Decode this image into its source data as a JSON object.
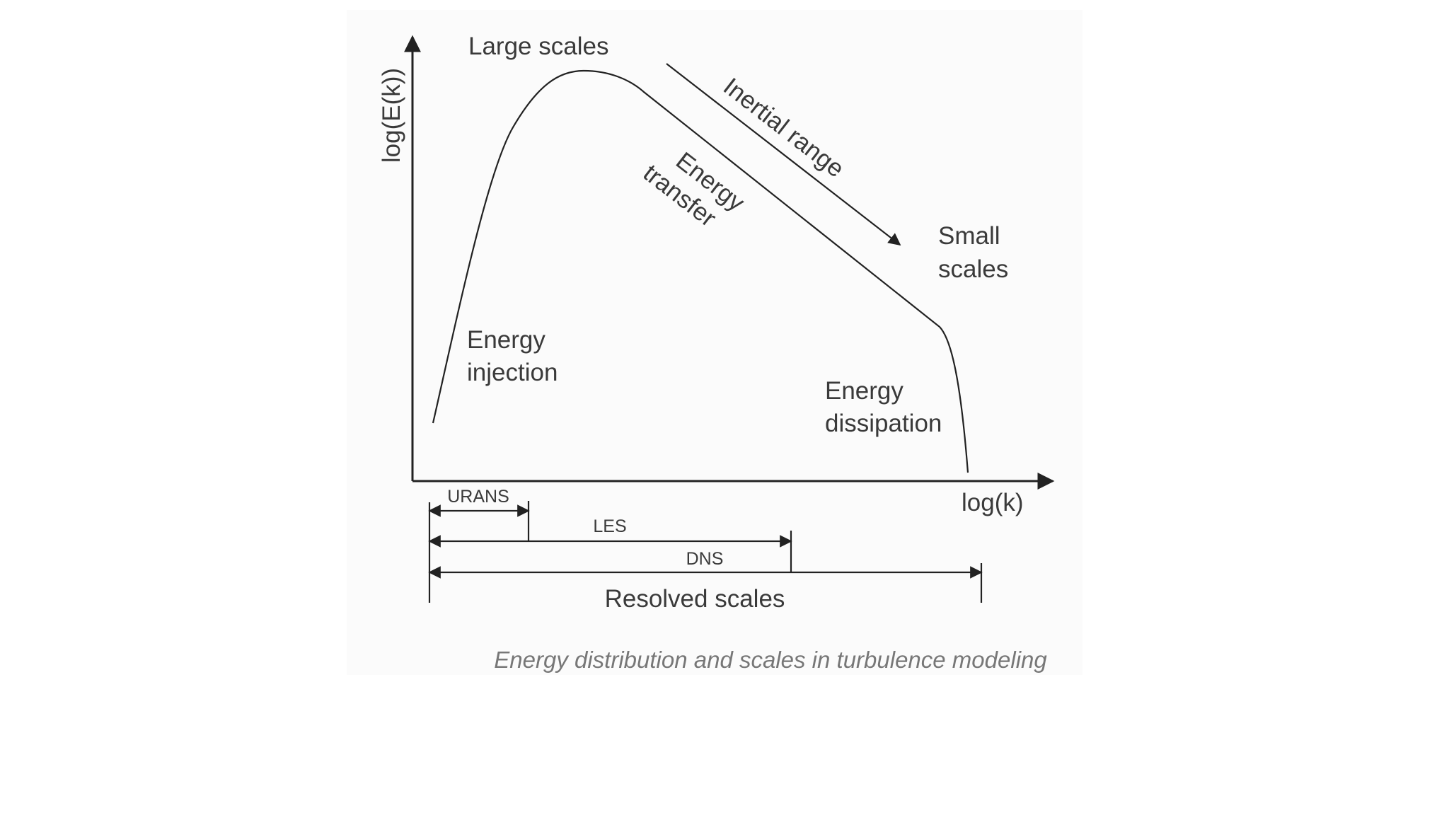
{
  "diagram": {
    "y_axis_label": "log(E(k))",
    "x_axis_label": "log(k)",
    "regions": {
      "large_scales": "Large scales",
      "inertial_range": "Inertial range",
      "energy_transfer_line1": "Energy",
      "energy_transfer_line2": "transfer",
      "small_scales_line1": "Small",
      "small_scales_line2": "scales",
      "energy_injection_line1": "Energy",
      "energy_injection_line2": "injection",
      "energy_dissipation_line1": "Energy",
      "energy_dissipation_line2": "dissipation"
    },
    "ranges": {
      "urans": "URANS",
      "les": "LES",
      "dns": "DNS",
      "resolved": "Resolved scales"
    },
    "colors": {
      "line": "#222222",
      "text": "#3a3a3a",
      "caption": "#777777"
    }
  },
  "caption": "Energy distribution and scales in turbulence modeling"
}
